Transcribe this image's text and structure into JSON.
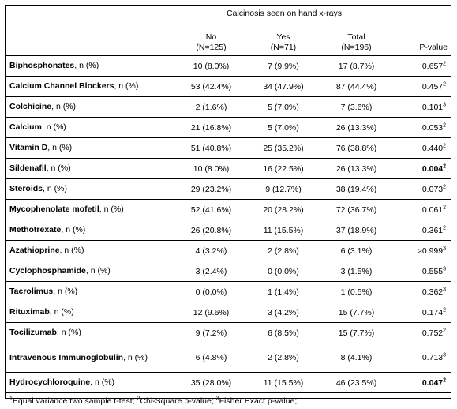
{
  "table": {
    "title": "Calcinosis seen on hand x-rays",
    "headers": [
      {
        "line1": "",
        "line2": ""
      },
      {
        "line1": "No",
        "line2": "(N=125)"
      },
      {
        "line1": "Yes",
        "line2": "(N=71)"
      },
      {
        "line1": "Total",
        "line2": "(N=196)"
      },
      {
        "line1": "",
        "line2": "P-value"
      }
    ],
    "rows": [
      {
        "drug": "Biphosphonates",
        "suffix": ", n (%)",
        "no": "10 (8.0%)",
        "yes": "7 (9.9%)",
        "total": "17 (8.7%)",
        "p": "0.657",
        "sup": "2",
        "p_bold": false
      },
      {
        "drug": "Calcium Channel Blockers",
        "suffix": ", n (%)",
        "no": "53 (42.4%)",
        "yes": "34 (47.9%)",
        "total": "87 (44.4%)",
        "p": "0.457",
        "sup": "2",
        "p_bold": false
      },
      {
        "drug": "Colchicine",
        "suffix": ", n (%)",
        "no": "2 (1.6%)",
        "yes": "5 (7.0%)",
        "total": "7 (3.6%)",
        "p": "0.101",
        "sup": "3",
        "p_bold": false
      },
      {
        "drug": "Calcium",
        "suffix": ", n (%)",
        "no": "21 (16.8%)",
        "yes": "5 (7.0%)",
        "total": "26 (13.3%)",
        "p": "0.053",
        "sup": "2",
        "p_bold": false
      },
      {
        "drug": "Vitamin D",
        "suffix": ", n (%)",
        "no": "51 (40.8%)",
        "yes": "25 (35.2%)",
        "total": "76 (38.8%)",
        "p": "0.440",
        "sup": "2",
        "p_bold": false
      },
      {
        "drug": "Sildenafil",
        "suffix": ", n (%)",
        "no": "10 (8.0%)",
        "yes": "16 (22.5%)",
        "total": "26 (13.3%)",
        "p": "0.004",
        "sup": "2",
        "p_bold": true
      },
      {
        "drug": "Steroids",
        "suffix": ", n (%)",
        "no": "29 (23.2%)",
        "yes": "9 (12.7%)",
        "total": "38 (19.4%)",
        "p": "0.073",
        "sup": "2",
        "p_bold": false
      },
      {
        "drug": "Mycophenolate mofetil",
        "suffix": ", n (%)",
        "no": "52 (41.6%)",
        "yes": "20 (28.2%)",
        "total": "72 (36.7%)",
        "p": "0.061",
        "sup": "2",
        "p_bold": false
      },
      {
        "drug": "Methotrexate",
        "suffix": ", n (%)",
        "no": "26 (20.8%)",
        "yes": "11 (15.5%)",
        "total": "37 (18.9%)",
        "p": "0.361",
        "sup": "2",
        "p_bold": false
      },
      {
        "drug": "Azathioprine",
        "suffix": ", n (%)",
        "no": "4 (3.2%)",
        "yes": "2 (2.8%)",
        "total": "6 (3.1%)",
        "p": ">0.999",
        "sup": "3",
        "p_bold": false
      },
      {
        "drug": "Cyclophosphamide",
        "suffix": ", n (%)",
        "no": "3 (2.4%)",
        "yes": "0 (0.0%)",
        "total": "3 (1.5%)",
        "p": "0.555",
        "sup": "3",
        "p_bold": false
      },
      {
        "drug": "Tacrolimus",
        "suffix": ", n (%)",
        "no": "0 (0.0%)",
        "yes": "1 (1.4%)",
        "total": "1 (0.5%)",
        "p": "0.362",
        "sup": "3",
        "p_bold": false
      },
      {
        "drug": "Rituximab",
        "suffix": ", n (%)",
        "no": "12 (9.6%)",
        "yes": "3 (4.2%)",
        "total": "15 (7.7%)",
        "p": "0.174",
        "sup": "2",
        "p_bold": false
      },
      {
        "drug": "Tocilizumab",
        "suffix": ", n (%)",
        "no": "9 (7.2%)",
        "yes": "6 (8.5%)",
        "total": "15 (7.7%)",
        "p": "0.752",
        "sup": "2",
        "p_bold": false
      },
      {
        "drug": "Intravenous Immunoglobulin",
        "suffix": ", n (%)",
        "no": "6 (4.8%)",
        "yes": "2 (2.8%)",
        "total": "8 (4.1%)",
        "p": "0.713",
        "sup": "3",
        "p_bold": false,
        "tall": true
      },
      {
        "drug": "Hydrocychloroquine",
        "suffix": ", n (%)",
        "no": "35 (28.0%)",
        "yes": "11 (15.5%)",
        "total": "46 (23.5%)",
        "p": "0.047",
        "sup": "2",
        "p_bold": true
      }
    ],
    "footnote": [
      {
        "sup": "1",
        "text": "Equal variance two sample t-test; "
      },
      {
        "sup": "2",
        "text": "Chi-Square p-value; "
      },
      {
        "sup": "3",
        "text": "Fisher Exact p-value;"
      }
    ]
  }
}
